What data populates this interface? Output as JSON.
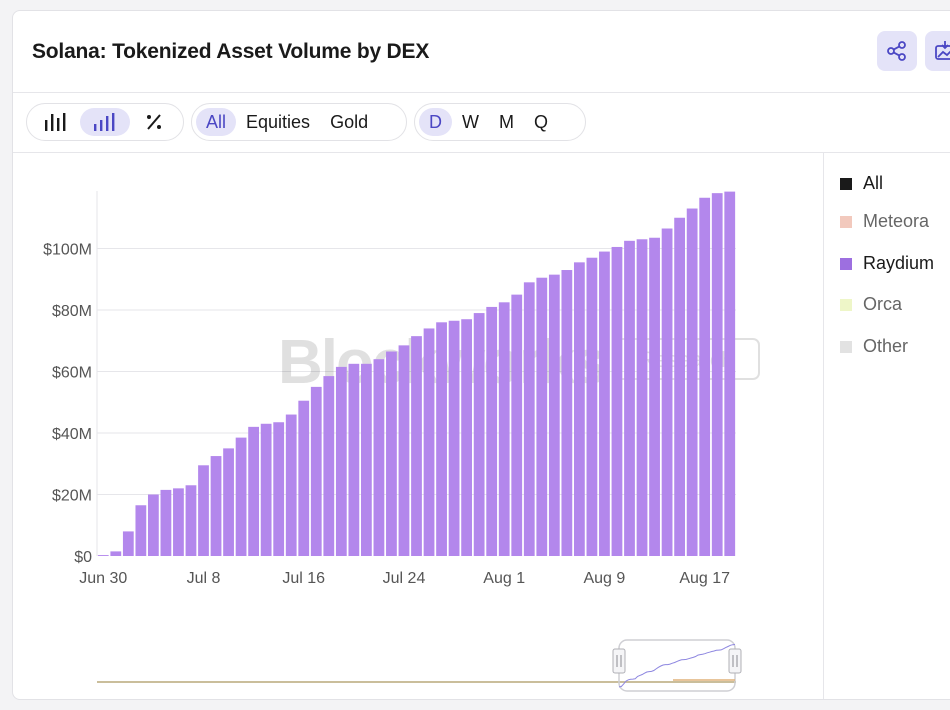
{
  "title": "Solana: Tokenized Asset Volume by DEX",
  "header_icons": [
    "share-icon",
    "download-image-icon"
  ],
  "toolbar": {
    "chart_type_icons": [
      "bar-chart-icon",
      "stacked-bar-icon",
      "percent-icon"
    ],
    "asset_filters": [
      "All",
      "Equities",
      "Gold"
    ],
    "asset_selected": "All",
    "periods": [
      "D",
      "W",
      "M",
      "Q"
    ],
    "period_selected": "D"
  },
  "watermark": {
    "brand": "Blockworks",
    "tag": "Research"
  },
  "legend": [
    {
      "label": "All",
      "color": "#1a1a1a",
      "active": true
    },
    {
      "label": "Meteora",
      "color": "#f2c9bd",
      "active": false
    },
    {
      "label": "Raydium",
      "color": "#9d6fe0",
      "active": true
    },
    {
      "label": "Orca",
      "color": "#eef6c8",
      "active": false
    },
    {
      "label": "Other",
      "color": "#e2e2e2",
      "active": false
    }
  ],
  "chart_data": {
    "type": "bar",
    "series": [
      {
        "name": "Raydium",
        "color": "#b387ec",
        "values": [
          0.3,
          1.5,
          8,
          16.5,
          20,
          21.5,
          22,
          23,
          29.5,
          32.5,
          35,
          38.5,
          42,
          43,
          43.5,
          46,
          50.5,
          55,
          58.5,
          61.5,
          62.5,
          62.5,
          64,
          66.5,
          68.5,
          71.5,
          74,
          76,
          76.5,
          77,
          79,
          81,
          82.5,
          85,
          89,
          90.5,
          91.5,
          93,
          95.5,
          97,
          99,
          100.5,
          102.5,
          103,
          103.5,
          106.5,
          110,
          113,
          116.5,
          118,
          118.5
        ]
      }
    ],
    "x_tick_labels": [
      "Jun 30",
      "Jul 8",
      "Jul 16",
      "Jul 24",
      "Aug 1",
      "Aug 9",
      "Aug 17"
    ],
    "y_tick_labels": [
      "$0",
      "$20M",
      "$40M",
      "$60M",
      "$80M",
      "$100M"
    ],
    "y_unit": "$M",
    "ylim": [
      0,
      120
    ],
    "grid": true,
    "legend_position": "right"
  }
}
